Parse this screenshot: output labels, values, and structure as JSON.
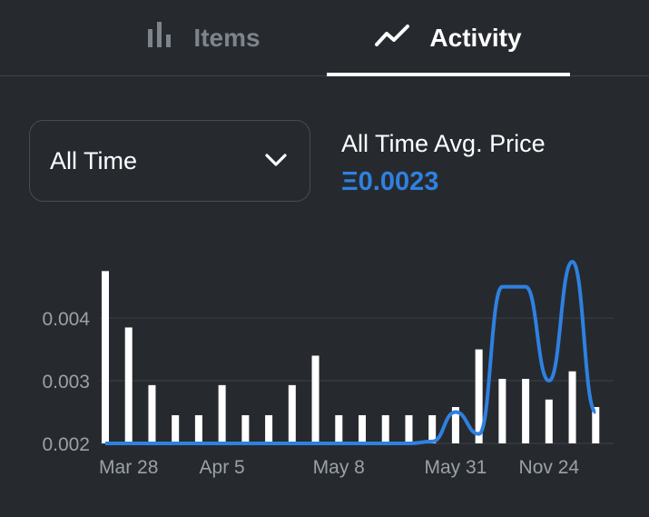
{
  "tabs": [
    {
      "label": "Items",
      "icon": "bar-chart-icon",
      "active": false
    },
    {
      "label": "Activity",
      "icon": "trend-line-icon",
      "active": true
    }
  ],
  "filter": {
    "selected": "All Time",
    "icon": "chevron-down-icon"
  },
  "summary": {
    "title": "All Time Avg. Price",
    "value": "Ξ0.0023"
  },
  "colors": {
    "background": "#262a2f",
    "accent": "#2f81e0",
    "inactive_tab": "#7d848b",
    "bar": "#ffffff",
    "grid": "#3c4147"
  },
  "chart_data": {
    "type": "bar",
    "y_ticks": [
      "0.004",
      "0.003",
      "0.002"
    ],
    "x_tick_labels": [
      "Mar 28",
      "Apr 5",
      "May 8",
      "May 31",
      "Nov 24"
    ],
    "ylim": [
      0.002,
      0.0049
    ],
    "bars": [
      0.00475,
      0.00385,
      0.00293,
      0.00245,
      0.00245,
      0.00293,
      0.00245,
      0.00245,
      0.00293,
      0.0034,
      0.00245,
      0.00245,
      0.00245,
      0.00245,
      0.00245,
      0.00258,
      0.0035,
      0.00303,
      0.00303,
      0.0027,
      0.00315,
      0.00258
    ],
    "line": [
      0.002,
      0.002,
      0.002,
      0.002,
      0.002,
      0.002,
      0.002,
      0.002,
      0.002,
      0.002,
      0.002,
      0.002,
      0.002,
      0.002,
      0.00203,
      0.0025,
      0.00215,
      0.0045,
      0.0045,
      0.003,
      0.0049,
      0.0025
    ],
    "grid": true
  }
}
